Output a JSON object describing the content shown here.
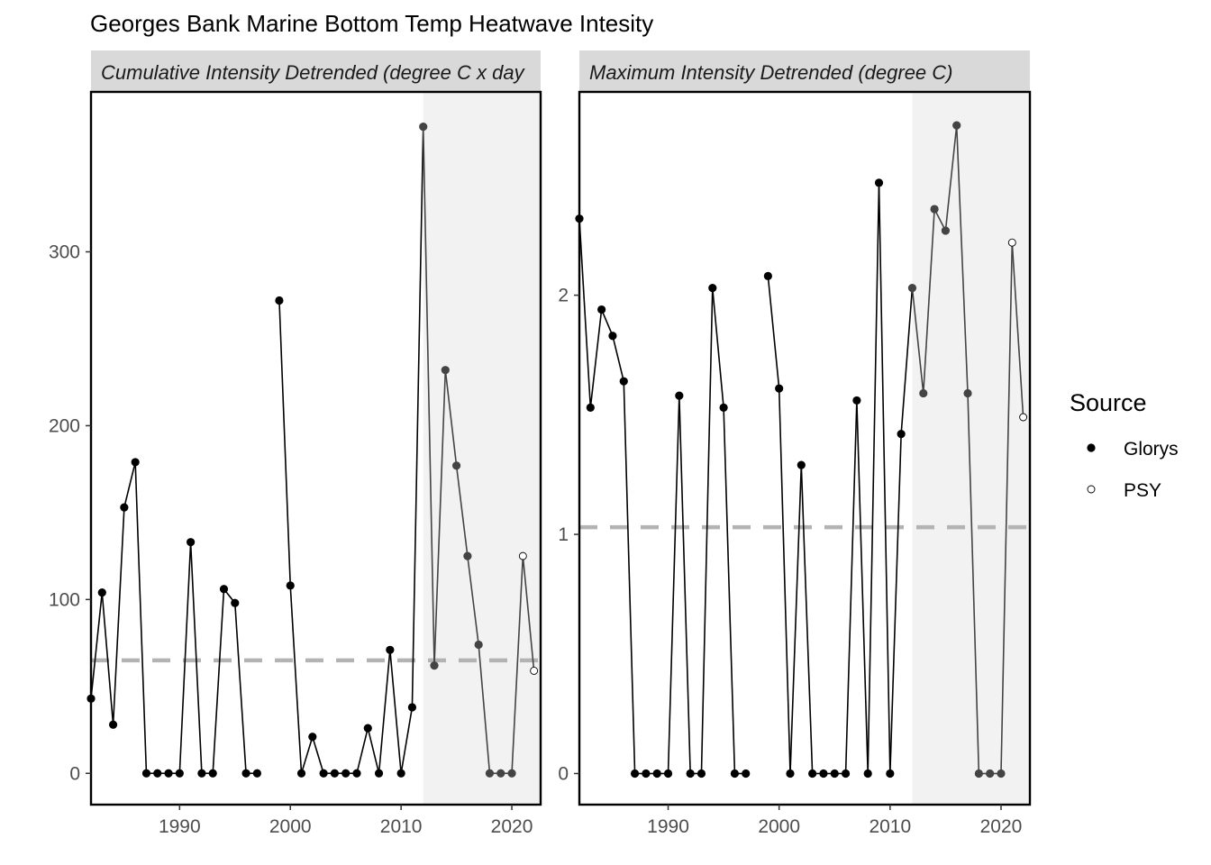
{
  "chart_data": {
    "type": "line",
    "title": "Georges Bank Marine Bottom Temp Heatwave Intesity",
    "x": [
      1982,
      1983,
      1984,
      1985,
      1986,
      1987,
      1988,
      1989,
      1990,
      1991,
      1992,
      1993,
      1994,
      1995,
      1996,
      1997,
      1998,
      1999,
      2000,
      2001,
      2002,
      2003,
      2004,
      2005,
      2006,
      2007,
      2008,
      2009,
      2010,
      2011,
      2012,
      2013,
      2014,
      2015,
      2016,
      2017,
      2018,
      2019,
      2020,
      2021,
      2022
    ],
    "source": [
      "Glorys",
      "Glorys",
      "Glorys",
      "Glorys",
      "Glorys",
      "Glorys",
      "Glorys",
      "Glorys",
      "Glorys",
      "Glorys",
      "Glorys",
      "Glorys",
      "Glorys",
      "Glorys",
      "Glorys",
      "Glorys",
      "Glorys",
      "Glorys",
      "Glorys",
      "Glorys",
      "Glorys",
      "Glorys",
      "Glorys",
      "Glorys",
      "Glorys",
      "Glorys",
      "Glorys",
      "Glorys",
      "Glorys",
      "Glorys",
      "Glorys",
      "Glorys",
      "Glorys",
      "Glorys",
      "Glorys",
      "Glorys",
      "Glorys",
      "Glorys",
      "Glorys",
      "PSY",
      "PSY"
    ],
    "highlight_range": [
      2012,
      2022.5
    ],
    "legend": {
      "title": "Source",
      "placement": "right",
      "entries": [
        {
          "name": "Glorys",
          "marker": "filled-circle"
        },
        {
          "name": "PSY",
          "marker": "open-circle"
        }
      ]
    },
    "panels": [
      {
        "id": "cumulative",
        "strip_label": "Cumulative Intensity Detrended (degree C x day",
        "values": [
          43,
          104,
          28,
          153,
          179,
          0,
          0,
          0,
          0,
          133,
          0,
          0,
          106,
          98,
          0,
          0,
          null,
          272,
          108,
          0,
          21,
          0,
          0,
          0,
          0,
          26,
          0,
          71,
          0,
          38,
          372,
          62,
          232,
          177,
          125,
          74,
          0,
          0,
          0,
          125,
          59
        ],
        "mean_line": 65,
        "xlim": [
          1982,
          2022.6
        ],
        "ylim": [
          -18,
          392
        ],
        "yticks": [
          0,
          100,
          200,
          300
        ],
        "xticks": [
          1990,
          2000,
          2010,
          2020
        ]
      },
      {
        "id": "maximum",
        "strip_label": "Maximum Intensity Detrended (degree C)",
        "values": [
          2.32,
          1.53,
          1.94,
          1.83,
          1.64,
          0,
          0,
          0,
          0,
          1.58,
          0,
          0,
          2.03,
          1.53,
          0,
          0,
          null,
          2.08,
          1.61,
          0,
          1.29,
          0,
          0,
          0,
          0,
          1.56,
          0,
          2.47,
          0,
          1.42,
          2.03,
          1.59,
          2.36,
          2.27,
          2.71,
          1.59,
          0,
          0,
          0,
          2.22,
          1.49
        ],
        "mean_line": 1.03,
        "xlim": [
          1982,
          2022.6
        ],
        "ylim": [
          -0.13,
          2.85
        ],
        "yticks": [
          0,
          1,
          2
        ],
        "xticks": [
          1990,
          2000,
          2010,
          2020
        ]
      }
    ]
  }
}
